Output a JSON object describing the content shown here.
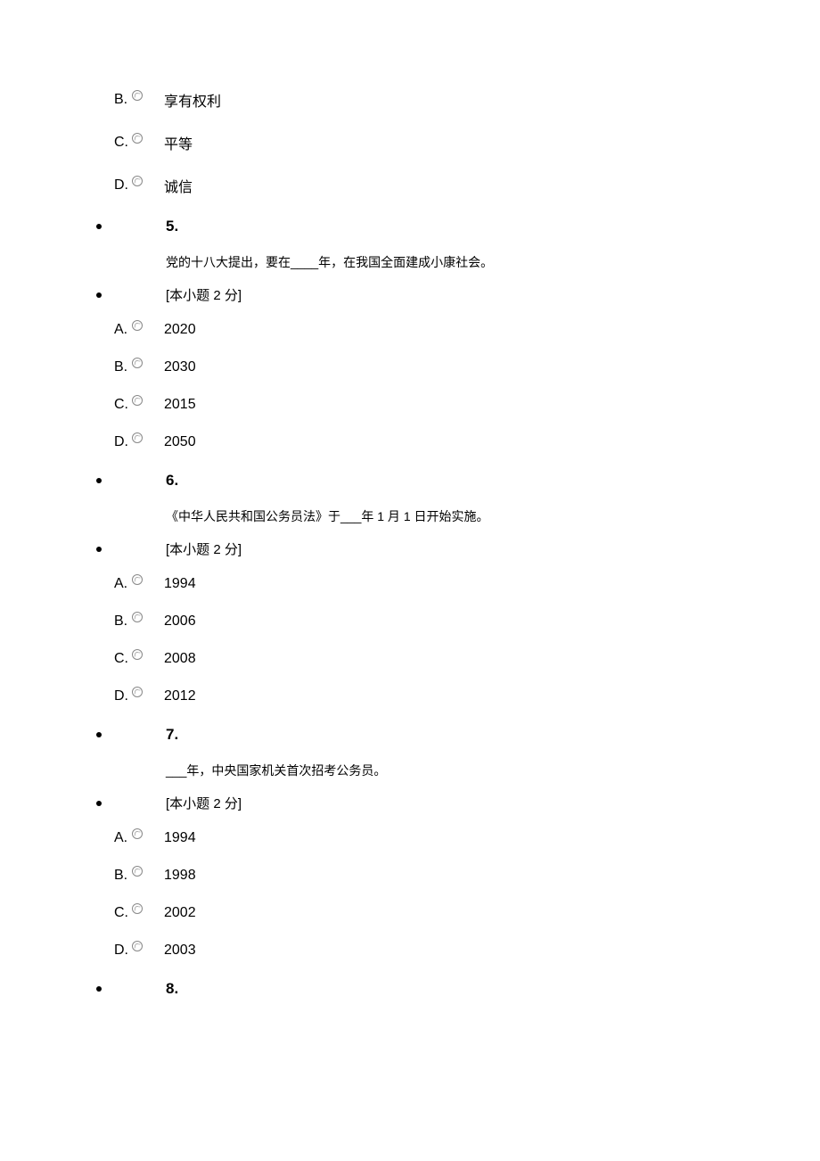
{
  "orphan_options": [
    {
      "letter": "B.",
      "text": "享有权利"
    },
    {
      "letter": "C.",
      "text": "平等"
    },
    {
      "letter": "D.",
      "text": "诚信"
    }
  ],
  "questions": [
    {
      "number": "5.",
      "stem": "党的十八大提出，要在____年，在我国全面建成小康社会。",
      "points": "[本小题 2 分]",
      "options": [
        {
          "letter": "A.",
          "text": "2020"
        },
        {
          "letter": "B.",
          "text": "2030"
        },
        {
          "letter": "C.",
          "text": "2015"
        },
        {
          "letter": "D.",
          "text": "2050"
        }
      ]
    },
    {
      "number": "6.",
      "stem": "《中华人民共和国公务员法》于___年 1 月 1 日开始实施。",
      "points": "[本小题 2 分]",
      "options": [
        {
          "letter": "A.",
          "text": "1994"
        },
        {
          "letter": "B.",
          "text": "2006"
        },
        {
          "letter": "C.",
          "text": "2008"
        },
        {
          "letter": "D.",
          "text": "2012"
        }
      ]
    },
    {
      "number": "7.",
      "stem": "___年，中央国家机关首次招考公务员。",
      "points": "[本小题 2 分]",
      "options": [
        {
          "letter": "A.",
          "text": "1994"
        },
        {
          "letter": "B.",
          "text": "1998"
        },
        {
          "letter": "C.",
          "text": "2002"
        },
        {
          "letter": "D.",
          "text": "2003"
        }
      ]
    },
    {
      "number": "8.",
      "stem": "",
      "points": "",
      "options": []
    }
  ]
}
